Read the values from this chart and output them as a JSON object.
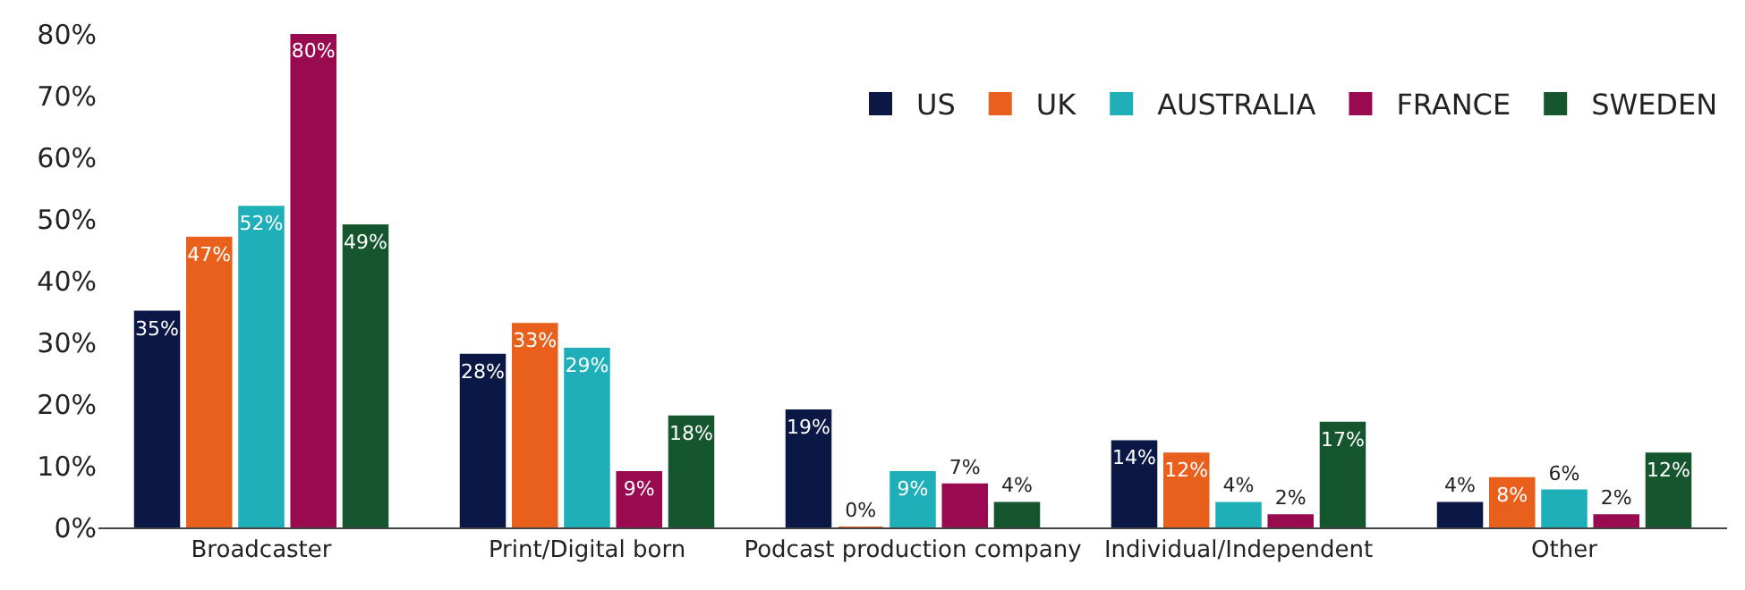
{
  "chart_data": {
    "type": "bar",
    "categories": [
      "Broadcaster",
      "Print/Digital born",
      "Podcast production company",
      "Individual/Independent",
      "Other"
    ],
    "series": [
      {
        "name": "US",
        "color": "#0b1846",
        "values": [
          35,
          28,
          19,
          14,
          4
        ],
        "value_labels": [
          "35%",
          "28%",
          "19%",
          "14%",
          "4%"
        ]
      },
      {
        "name": "UK",
        "color": "#e8601c",
        "values": [
          47,
          33,
          0,
          12,
          8
        ],
        "value_labels": [
          "47%",
          "33%",
          "0%",
          "12%",
          "8%"
        ]
      },
      {
        "name": "AUSTRALIA",
        "color": "#1fafb8",
        "values": [
          52,
          29,
          9,
          4,
          6
        ],
        "value_labels": [
          "52%",
          "29%",
          "9%",
          "4%",
          "6%"
        ]
      },
      {
        "name": "FRANCE",
        "color": "#990a50",
        "values": [
          80,
          9,
          7,
          2,
          2
        ],
        "value_labels": [
          "80%",
          "9%",
          "7%",
          "2%",
          "2%"
        ]
      },
      {
        "name": "SWEDEN",
        "color": "#15562f",
        "values": [
          49,
          18,
          4,
          17,
          12
        ],
        "value_labels": [
          "49%",
          "18%",
          "4%",
          "17%",
          "12%"
        ]
      }
    ],
    "ylim": [
      0,
      80
    ],
    "yticks": [
      {
        "value": 0,
        "label": "0%"
      },
      {
        "value": 10,
        "label": "10%"
      },
      {
        "value": 20,
        "label": "20%"
      },
      {
        "value": 30,
        "label": "30%"
      },
      {
        "value": 40,
        "label": "40%"
      },
      {
        "value": 50,
        "label": "50%"
      },
      {
        "value": 60,
        "label": "60%"
      },
      {
        "value": 70,
        "label": "70%"
      },
      {
        "value": 80,
        "label": "80%"
      }
    ],
    "legend": "top right"
  }
}
